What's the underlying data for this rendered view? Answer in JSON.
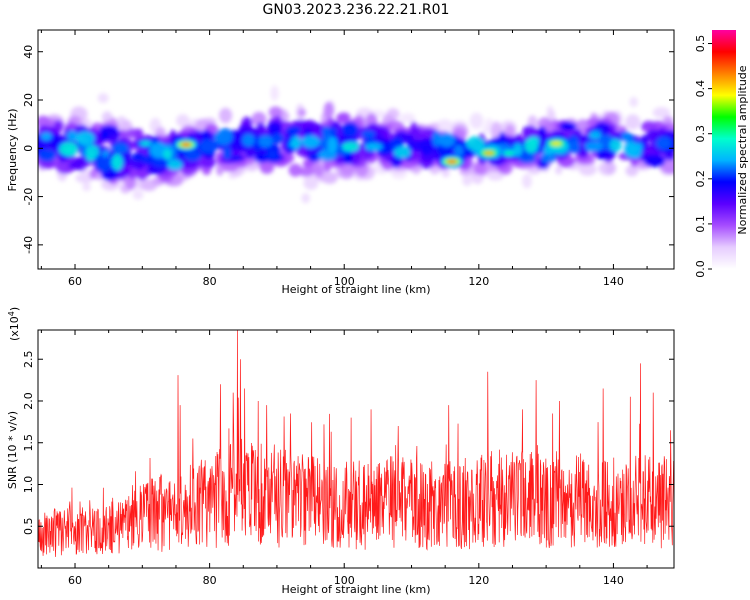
{
  "page": {
    "title": "GN03.2023.236.22.21.R01"
  },
  "chart_data": [
    {
      "type": "heatmap",
      "title": "GN03.2023.236.22.21.R01",
      "xlabel": "Height of straight line (km)",
      "ylabel": "Frequency (Hz)",
      "xlim": [
        54.5,
        149
      ],
      "ylim": [
        -50,
        49
      ],
      "xticks": [
        60,
        80,
        100,
        120,
        140
      ],
      "yticks": [
        -40,
        -20,
        0,
        20,
        40
      ],
      "colorbar": {
        "label": "Normalized spectral amplitude",
        "range": [
          0,
          0.53
        ],
        "ticks": [
          0.0,
          0.1,
          0.2,
          0.3,
          0.4,
          0.5
        ],
        "tick_labels": [
          "0.0",
          "0.1",
          "0.2",
          "0.3",
          "0.4",
          "0.5"
        ],
        "colormap": [
          "#ffffff",
          "#e6ccff",
          "#a64dff",
          "#5a00ff",
          "#0000ff",
          "#00b4ff",
          "#00ffcc",
          "#00ff00",
          "#ffff00",
          "#ff8000",
          "#ff0000",
          "#ff00a0"
        ]
      },
      "band": {
        "center_freq_hz": [
          [
            55,
            2
          ],
          [
            65,
            -2
          ],
          [
            75,
            -3
          ],
          [
            85,
            3
          ],
          [
            95,
            3
          ],
          [
            105,
            2
          ],
          [
            115,
            0
          ],
          [
            125,
            -1
          ],
          [
            135,
            3
          ],
          [
            145,
            2
          ]
        ],
        "halfwidth_hz": [
          [
            55,
            14
          ],
          [
            65,
            16
          ],
          [
            75,
            12
          ],
          [
            85,
            14
          ],
          [
            95,
            18
          ],
          [
            105,
            13
          ],
          [
            115,
            10
          ],
          [
            125,
            10
          ],
          [
            135,
            12
          ],
          [
            145,
            12
          ]
        ]
      },
      "peaks": [
        {
          "x": 76.5,
          "y": 1.5,
          "value": 0.45
        },
        {
          "x": 116.0,
          "y": -5.5,
          "value": 0.45
        },
        {
          "x": 121.5,
          "y": -2.0,
          "value": 0.42
        },
        {
          "x": 131.5,
          "y": 2.0,
          "value": 0.4
        },
        {
          "x": 124.5,
          "y": -2.0,
          "value": 0.3
        },
        {
          "x": 70.5,
          "y": 2.0,
          "value": 0.28
        },
        {
          "x": 92.5,
          "y": 1.5,
          "value": 0.25
        },
        {
          "x": 137.5,
          "y": 7.0,
          "value": 0.22
        },
        {
          "x": 143.5,
          "y": 1.0,
          "value": 0.24
        },
        {
          "x": 84.0,
          "y": -4.0,
          "value": 0.2
        },
        {
          "x": 63.0,
          "y": -4.0,
          "value": 0.2
        }
      ],
      "grid": false,
      "legend": "colorbar-right"
    },
    {
      "type": "line",
      "xlabel": "Height of straight line (km)",
      "ylabel": "SNR (10 * v/v)",
      "y_multiplier": "(x10",
      "y_multiplier_exp": "4",
      "y_multiplier_close": ")",
      "xlim": [
        54.5,
        149
      ],
      "ylim": [
        0,
        2.85
      ],
      "xticks": [
        60,
        80,
        100,
        120,
        140
      ],
      "yticks": [
        0.5,
        1.0,
        1.5,
        2.0,
        2.5
      ],
      "ytick_labels": [
        "0.5",
        "1.0",
        "1.5",
        "2.0",
        "2.5"
      ],
      "series": [
        {
          "color": "#ff1a1a",
          "n_points": 1500,
          "envelope": [
            [
              55,
              0.45
            ],
            [
              62,
              0.55
            ],
            [
              68,
              0.6
            ],
            [
              72,
              0.75
            ],
            [
              78,
              0.85
            ],
            [
              82,
              1.0
            ],
            [
              86,
              1.05
            ],
            [
              92,
              0.95
            ],
            [
              100,
              0.85
            ],
            [
              108,
              0.9
            ],
            [
              115,
              0.85
            ],
            [
              122,
              0.95
            ],
            [
              130,
              0.95
            ],
            [
              140,
              0.9
            ],
            [
              149,
              0.9
            ]
          ],
          "spikes": [
            [
              75.3,
              2.31
            ],
            [
              75.6,
              1.95
            ],
            [
              77.5,
              1.55
            ],
            [
              81.6,
              2.2
            ],
            [
              83.5,
              2.1
            ],
            [
              84.1,
              2.85
            ],
            [
              84.6,
              2.5
            ],
            [
              85.2,
              2.15
            ],
            [
              87.2,
              2.0
            ],
            [
              88.5,
              1.95
            ],
            [
              92.0,
              1.85
            ],
            [
              97.0,
              1.72
            ],
            [
              101.0,
              1.8
            ],
            [
              104.0,
              1.9
            ],
            [
              108.0,
              1.7
            ],
            [
              115.5,
              1.95
            ],
            [
              121.3,
              2.35
            ],
            [
              126.5,
              1.9
            ],
            [
              128.5,
              2.25
            ],
            [
              131.0,
              1.85
            ],
            [
              132.0,
              2.0
            ],
            [
              138.5,
              2.15
            ],
            [
              142.5,
              2.05
            ],
            [
              144.0,
              2.45
            ],
            [
              145.9,
              2.1
            ],
            [
              148.5,
              1.65
            ]
          ]
        }
      ],
      "grid": false
    }
  ]
}
